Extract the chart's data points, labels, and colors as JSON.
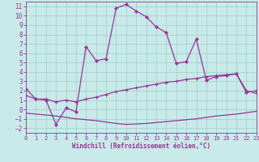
{
  "bg_color": "#c8eae8",
  "grid_color": "#a0cccc",
  "line_color": "#993399",
  "xlim": [
    0,
    23
  ],
  "ylim": [
    -2.5,
    11.5
  ],
  "xticks": [
    0,
    1,
    2,
    3,
    4,
    5,
    6,
    7,
    8,
    9,
    10,
    11,
    12,
    13,
    14,
    15,
    16,
    17,
    18,
    19,
    20,
    21,
    22,
    23
  ],
  "yticks": [
    -2,
    -1,
    0,
    1,
    2,
    3,
    4,
    5,
    6,
    7,
    8,
    9,
    10,
    11
  ],
  "curve1_x": [
    0,
    1,
    2,
    3,
    4,
    5,
    6,
    7,
    8,
    9,
    10,
    11,
    12,
    13,
    14,
    15,
    16,
    17,
    18,
    19,
    20,
    21,
    22,
    23
  ],
  "curve1_y": [
    2.2,
    1.1,
    1.0,
    -1.6,
    0.15,
    -0.25,
    6.7,
    5.2,
    5.4,
    10.8,
    11.2,
    10.5,
    9.9,
    8.8,
    8.2,
    4.9,
    5.1,
    7.5,
    3.1,
    3.5,
    3.6,
    3.8,
    1.8,
    2.0
  ],
  "curve2_x": [
    0,
    1,
    2,
    3,
    4,
    5,
    6,
    7,
    8,
    9,
    10,
    11,
    12,
    13,
    14,
    15,
    16,
    17,
    18,
    19,
    20,
    21,
    22,
    23
  ],
  "curve2_y": [
    1.5,
    1.1,
    1.1,
    0.8,
    1.0,
    0.8,
    1.1,
    1.3,
    1.6,
    1.9,
    2.1,
    2.3,
    2.5,
    2.7,
    2.9,
    3.0,
    3.2,
    3.3,
    3.5,
    3.6,
    3.7,
    3.8,
    2.0,
    1.7
  ],
  "curve3_x": [
    0,
    1,
    2,
    3,
    4,
    5,
    6,
    7,
    8,
    9,
    10,
    11,
    12,
    13,
    14,
    15,
    16,
    17,
    18,
    19,
    20,
    21,
    22,
    23
  ],
  "curve3_y": [
    -0.4,
    -0.5,
    -0.6,
    -0.7,
    -0.85,
    -1.0,
    -1.1,
    -1.2,
    -1.35,
    -1.5,
    -1.6,
    -1.55,
    -1.5,
    -1.4,
    -1.3,
    -1.2,
    -1.1,
    -1.0,
    -0.85,
    -0.7,
    -0.6,
    -0.5,
    -0.35,
    -0.2
  ],
  "xlabel": "Windchill (Refroidissement éolien,°C)"
}
